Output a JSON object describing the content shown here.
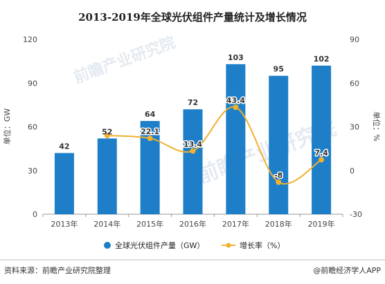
{
  "chart_data": {
    "type": "bar+line",
    "title": "2013-2019年全球光伏组件产量统计及增长情况",
    "categories": [
      "2013年",
      "2014年",
      "2015年",
      "2016年",
      "2017年",
      "2018年",
      "2019年"
    ],
    "series": [
      {
        "name": "全球光伏组件产量（GW）",
        "type": "bar",
        "axis": "left",
        "color": "#1e7fc8",
        "values": [
          42,
          52,
          64,
          72,
          103,
          95,
          102
        ]
      },
      {
        "name": "增长率（%）",
        "type": "line",
        "axis": "right",
        "color": "#f0b030",
        "values": [
          null,
          24,
          22.1,
          13.4,
          43.4,
          -8,
          7.4
        ],
        "labels": [
          null,
          null,
          "22.1",
          "13.4",
          "43.4",
          "-8",
          "7.4"
        ]
      }
    ],
    "y_left": {
      "label": "单位：GW",
      "lim": [
        0,
        120
      ],
      "ticks": [
        0,
        30,
        60,
        90,
        120
      ]
    },
    "y_right": {
      "label": "单位：%",
      "lim": [
        -30,
        90
      ],
      "ticks": [
        -30,
        0,
        30,
        60,
        90
      ]
    },
    "legend": {
      "position": "bottom"
    },
    "grid": false
  },
  "watermark": {
    "text": "前瞻产业研究院"
  },
  "footer": {
    "source": "资料来源：前瞻产业研究院整理",
    "credit": "@前瞻经济学人APP"
  }
}
